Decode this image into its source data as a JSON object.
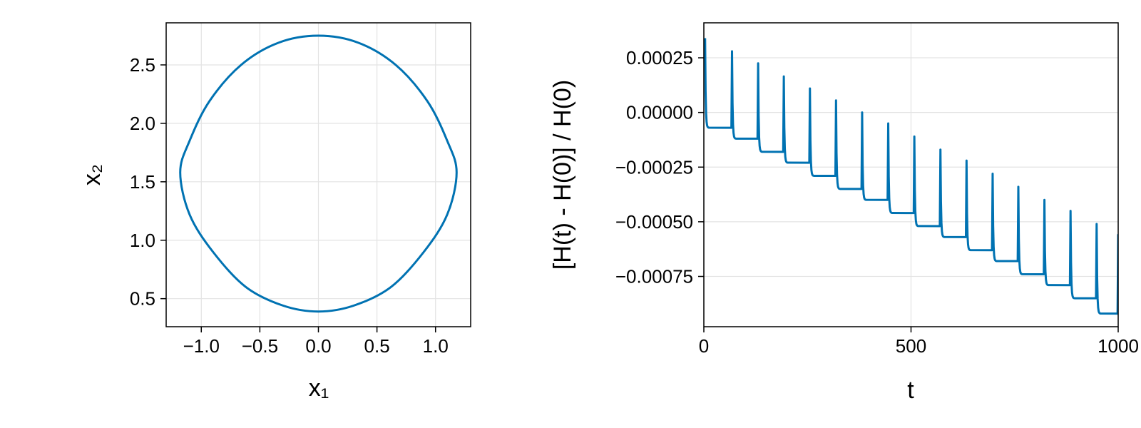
{
  "chart_data": [
    {
      "type": "line",
      "xlabel": "x₁",
      "ylabel": "x₂",
      "xlim": [
        -1.3,
        1.3
      ],
      "ylim": [
        0.26,
        2.86
      ],
      "xticks": [
        -1.0,
        -0.5,
        0.0,
        0.5,
        1.0
      ],
      "xtick_labels": [
        "−1.0",
        "−0.5",
        "0.0",
        "0.5",
        "1.0"
      ],
      "yticks": [
        0.5,
        1.0,
        1.5,
        2.0,
        2.5
      ],
      "ytick_labels": [
        "0.5",
        "1.0",
        "1.5",
        "2.0",
        "2.5"
      ],
      "grid": true,
      "series": [
        {
          "color": "#0072b2",
          "x": [
            0.0,
            0.34,
            0.66,
            0.93,
            1.1,
            1.18,
            1.1,
            0.9,
            0.62,
            0.3,
            0.0,
            -0.3,
            -0.62,
            -0.9,
            -1.1,
            -1.18,
            -1.1,
            -0.93,
            -0.66,
            -0.34,
            0.0
          ],
          "y": [
            2.75,
            2.69,
            2.5,
            2.19,
            1.85,
            1.58,
            1.22,
            0.9,
            0.6,
            0.44,
            0.39,
            0.44,
            0.6,
            0.9,
            1.22,
            1.58,
            1.85,
            2.19,
            2.5,
            2.69,
            2.75
          ]
        }
      ]
    },
    {
      "type": "line",
      "xlabel": "t",
      "ylabel": "[H(t) - H(0)] / H(0)",
      "xlim": [
        0,
        1000
      ],
      "ylim": [
        -0.00098,
        0.00041
      ],
      "xticks": [
        0,
        500,
        1000
      ],
      "xtick_labels": [
        "0",
        "500",
        "1000"
      ],
      "yticks": [
        0.00025,
        0.0,
        -0.00025,
        -0.0005,
        -0.00075
      ],
      "ytick_labels": [
        "0.00025",
        "0.00000",
        "−0.00025",
        "−0.00050",
        "−0.00075"
      ],
      "grid": true,
      "series": [
        {
          "color": "#0072b2",
          "spike_t": [
            3,
            68,
            131,
            193,
            256,
            319,
            382,
            445,
            508,
            571,
            634,
            697,
            759,
            822,
            885,
            948,
            1000
          ],
          "spike_peak": [
            0.00034,
            0.00028,
            0.000225,
            0.000165,
            0.00011,
            5.5e-05,
            0.0,
            -5e-05,
            -0.00011,
            -0.00017,
            -0.00022,
            -0.00028,
            -0.00034,
            -0.0004,
            -0.00045,
            -0.00051,
            -0.00056
          ],
          "plateau": [
            -7e-05,
            -0.00012,
            -0.00018,
            -0.00023,
            -0.00029,
            -0.00035,
            -0.0004,
            -0.00046,
            -0.00052,
            -0.00057,
            -0.00063,
            -0.00068,
            -0.00074,
            -0.00079,
            -0.00085,
            -0.00092
          ]
        }
      ]
    }
  ]
}
